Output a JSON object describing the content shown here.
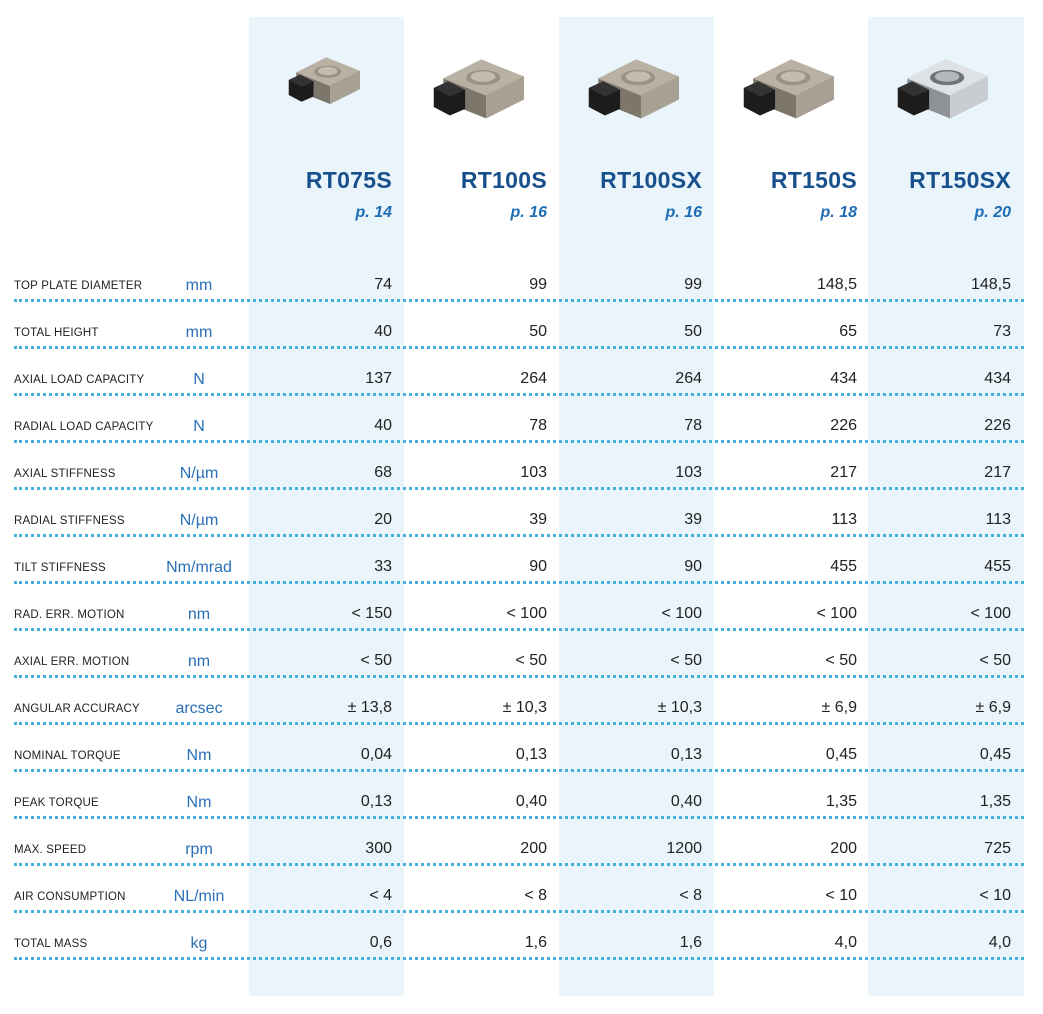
{
  "products": [
    {
      "name": "RT075S",
      "page": "p. 14",
      "image_icon": "rotary-table-small-icon"
    },
    {
      "name": "RT100S",
      "page": "p. 16",
      "image_icon": "rotary-table-icon"
    },
    {
      "name": "RT100SX",
      "page": "p. 16",
      "image_icon": "rotary-table-icon"
    },
    {
      "name": "RT150S",
      "page": "p. 18",
      "image_icon": "rotary-table-icon"
    },
    {
      "name": "RT150SX",
      "page": "p. 20",
      "image_icon": "rotary-table-metal-icon"
    }
  ],
  "rows": [
    {
      "label": "TOP PLATE DIAMETER",
      "unit": "mm",
      "values": [
        "74",
        "99",
        "99",
        "148,5",
        "148,5"
      ]
    },
    {
      "label": "TOTAL HEIGHT",
      "unit": "mm",
      "values": [
        "40",
        "50",
        "50",
        "65",
        "73"
      ]
    },
    {
      "label": "AXIAL LOAD CAPACITY",
      "unit": "N",
      "values": [
        "137",
        "264",
        "264",
        "434",
        "434"
      ]
    },
    {
      "label": "RADIAL LOAD CAPACITY",
      "unit": "N",
      "values": [
        "40",
        "78",
        "78",
        "226",
        "226"
      ]
    },
    {
      "label": "AXIAL STIFFNESS",
      "unit": "N/µm",
      "values": [
        "68",
        "103",
        "103",
        "217",
        "217"
      ]
    },
    {
      "label": "RADIAL STIFFNESS",
      "unit": "N/µm",
      "values": [
        "20",
        "39",
        "39",
        "113",
        "113"
      ]
    },
    {
      "label": "TILT STIFFNESS",
      "unit": "Nm/mrad",
      "values": [
        "33",
        "90",
        "90",
        "455",
        "455"
      ]
    },
    {
      "label": "RAD. ERR. MOTION",
      "unit": "nm",
      "values": [
        "< 150",
        "< 100",
        "< 100",
        "< 100",
        "< 100"
      ]
    },
    {
      "label": "AXIAL ERR. MOTION",
      "unit": "nm",
      "values": [
        "< 50",
        "< 50",
        "< 50",
        "< 50",
        "< 50"
      ]
    },
    {
      "label": "ANGULAR ACCURACY",
      "unit": "arcsec",
      "values": [
        "± 13,8",
        "± 10,3",
        "± 10,3",
        "± 6,9",
        "± 6,9"
      ]
    },
    {
      "label": "NOMINAL TORQUE",
      "unit": "Nm",
      "values": [
        "0,04",
        "0,13",
        "0,13",
        "0,45",
        "0,45"
      ]
    },
    {
      "label": "PEAK TORQUE",
      "unit": "Nm",
      "values": [
        "0,13",
        "0,40",
        "0,40",
        "1,35",
        "1,35"
      ]
    },
    {
      "label": "MAX. SPEED",
      "unit": "rpm",
      "values": [
        "300",
        "200",
        "1200",
        "200",
        "725"
      ]
    },
    {
      "label": "AIR CONSUMPTION",
      "unit": "NL/min",
      "values": [
        "< 4",
        "< 8",
        "< 8",
        "< 10",
        "< 10"
      ]
    },
    {
      "label": "TOTAL MASS",
      "unit": "kg",
      "values": [
        "0,6",
        "1,6",
        "1,6",
        "4,0",
        "4,0"
      ]
    }
  ],
  "colors": {
    "band": "#e9f4fb",
    "title": "#17508d",
    "unit": "#2a6fb8",
    "dots": "#45b2de"
  }
}
